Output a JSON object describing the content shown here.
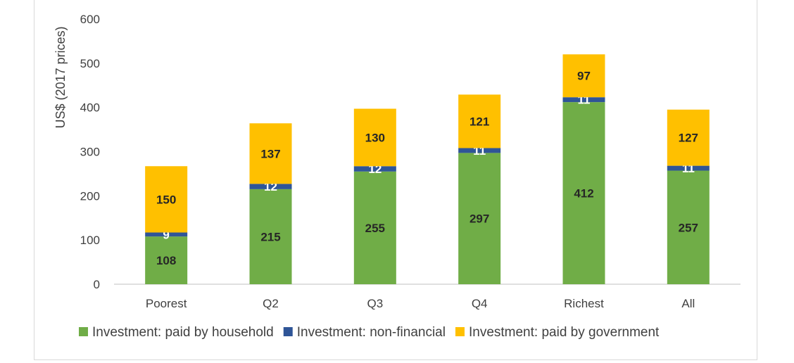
{
  "chart_data": {
    "type": "bar",
    "stacked": true,
    "title": "",
    "xlabel": "",
    "ylabel": "US$ (2017 prices)",
    "ylim": [
      0,
      600
    ],
    "yticks": [
      0,
      100,
      200,
      300,
      400,
      500,
      600
    ],
    "grid": false,
    "legend_position": "bottom",
    "categories": [
      "Poorest",
      "Q2",
      "Q3",
      "Q4",
      "Richest",
      "All"
    ],
    "series": [
      {
        "name": "Investment: paid by household",
        "color": "#70ad47",
        "label_color": "#262626",
        "values": [
          108,
          215,
          255,
          297,
          412,
          257
        ]
      },
      {
        "name": "Investment: non-financial",
        "color": "#2f5597",
        "label_color": "#ffffff",
        "values": [
          9,
          12,
          12,
          11,
          11,
          11
        ]
      },
      {
        "name": "Investment: paid by government",
        "color": "#ffc000",
        "label_color": "#262626",
        "values": [
          150,
          137,
          130,
          121,
          97,
          127
        ]
      }
    ]
  }
}
